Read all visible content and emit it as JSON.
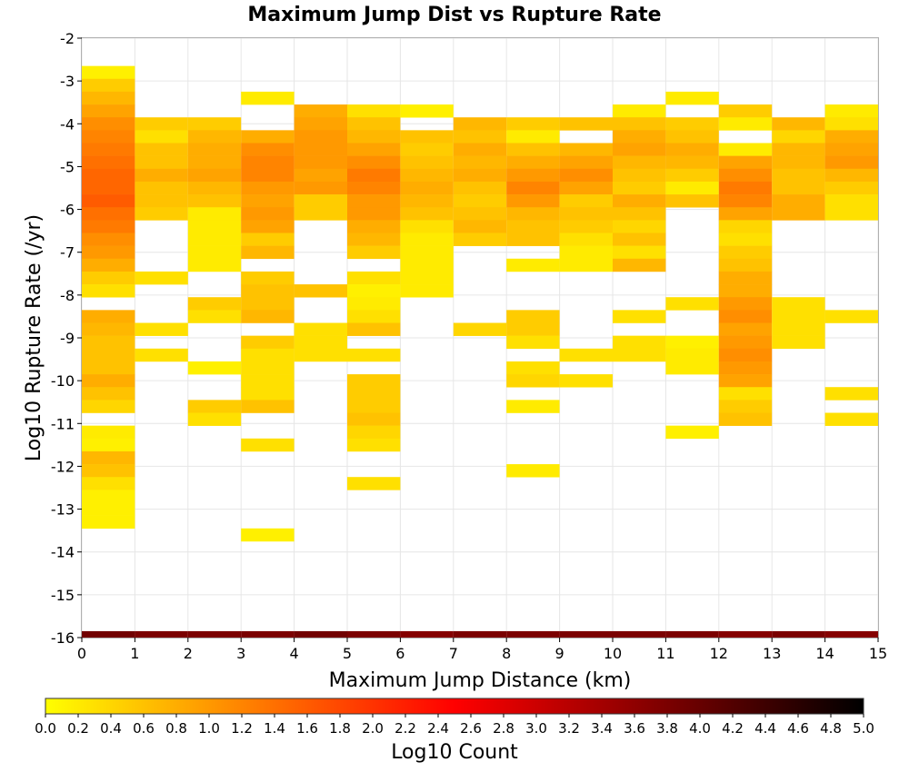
{
  "chart_data": {
    "type": "heatmap",
    "title": "Maximum Jump Dist vs Rupture Rate",
    "xlabel": "Maximum Jump Distance (km)",
    "ylabel": "Log10 Rupture Rate (/yr)",
    "xlim": [
      0,
      15
    ],
    "ylim": [
      -16,
      -2
    ],
    "x_ticks": [
      "0",
      "1",
      "2",
      "3",
      "4",
      "5",
      "6",
      "7",
      "8",
      "9",
      "10",
      "11",
      "12",
      "13",
      "14",
      "15"
    ],
    "y_ticks": [
      "-2",
      "-3",
      "-4",
      "-5",
      "-6",
      "-7",
      "-8",
      "-9",
      "-10",
      "-11",
      "-12",
      "-13",
      "-14",
      "-15",
      "-16"
    ],
    "x_bin_width": 1,
    "y_bin_height": 0.3,
    "grid": true,
    "colorbar": {
      "label": "Log10 Count",
      "range": [
        0,
        5
      ],
      "ticks": [
        "0.0",
        "0.2",
        "0.4",
        "0.6",
        "0.8",
        "1.0",
        "1.2",
        "1.4",
        "1.6",
        "1.8",
        "2.0",
        "2.2",
        "2.4",
        "2.6",
        "2.8",
        "3.0",
        "3.2",
        "3.4",
        "3.6",
        "3.8",
        "4.0",
        "4.2",
        "4.4",
        "4.6",
        "4.8",
        "5.0"
      ],
      "colors": [
        "#ffff00",
        "#ff7f00",
        "#ff0000",
        "#800000",
        "#000000"
      ]
    },
    "columns": [
      {
        "x": 0,
        "from": -2.65,
        "values": [
          0.15,
          0.5,
          0.7,
          0.9,
          1.1,
          1.2,
          1.3,
          1.4,
          1.5,
          1.5,
          1.6,
          1.4,
          1.3,
          1.1,
          1.0,
          0.8,
          0.5,
          0.3,
          null,
          0.8,
          0.7,
          0.6,
          0.6,
          0.6,
          0.8,
          0.6,
          0.4,
          null,
          0.2,
          0.15,
          0.7,
          0.6,
          0.3,
          0.15,
          0.15,
          0.15
        ],
        "base": 3.9
      },
      {
        "x": 1,
        "from": -3.85,
        "values": [
          0.5,
          0.3,
          0.6,
          0.6,
          0.8,
          0.6,
          0.6,
          0.5,
          null,
          null,
          null,
          null,
          0.3,
          null,
          null,
          null,
          0.3,
          null,
          0.3
        ],
        "base": 3.8
      },
      {
        "x": 2,
        "from": -3.85,
        "values": [
          0.5,
          0.7,
          0.8,
          0.8,
          0.9,
          0.7,
          0.6,
          0.2,
          0.2,
          0.2,
          0.2,
          0.2,
          null,
          null,
          0.5,
          0.3,
          null,
          null,
          null,
          0.15,
          null,
          null,
          0.5,
          0.3
        ],
        "base": 3.8
      },
      {
        "x": 3,
        "from": -3.25,
        "values": [
          0.2,
          null,
          null,
          0.8,
          1.1,
          1.2,
          1.2,
          1.0,
          0.9,
          1.0,
          0.9,
          0.5,
          0.7,
          null,
          0.5,
          0.6,
          0.6,
          0.7,
          null,
          0.5,
          0.3,
          0.3,
          0.3,
          0.3,
          0.6,
          null,
          null,
          0.3,
          null,
          null,
          null,
          null,
          null,
          null,
          0.15
        ],
        "base": 3.8
      },
      {
        "x": 4,
        "from": -3.55,
        "values": [
          0.8,
          0.9,
          1.0,
          1.0,
          1.0,
          0.9,
          1.0,
          0.5,
          0.5,
          null,
          null,
          null,
          null,
          null,
          0.6,
          null,
          null,
          0.3,
          0.3,
          0.3
        ],
        "base": 3.9
      },
      {
        "x": 5,
        "from": -3.55,
        "values": [
          0.3,
          0.6,
          0.7,
          0.9,
          1.1,
          1.3,
          1.2,
          1.0,
          1.0,
          0.8,
          0.7,
          0.5,
          null,
          0.3,
          0.15,
          0.2,
          0.3,
          0.6,
          null,
          0.3,
          null,
          0.5,
          0.5,
          0.5,
          0.6,
          0.4,
          0.3,
          null,
          null,
          0.3
        ],
        "base": 3.8
      },
      {
        "x": 6,
        "from": -3.55,
        "values": [
          0.15,
          null,
          0.6,
          0.5,
          0.6,
          0.7,
          0.8,
          0.7,
          0.6,
          0.3,
          0.2,
          0.2,
          0.2,
          0.2,
          0.2
        ],
        "base": 3.7
      },
      {
        "x": 7,
        "from": -3.85,
        "values": [
          0.7,
          0.6,
          0.8,
          0.7,
          0.8,
          0.6,
          0.5,
          0.6,
          0.7,
          0.5,
          null,
          null,
          null,
          null,
          null,
          null,
          0.4
        ],
        "base": 3.8
      },
      {
        "x": 8,
        "from": -3.85,
        "values": [
          0.5,
          0.2,
          0.6,
          0.8,
          1.0,
          1.2,
          1.0,
          0.7,
          0.6,
          0.6,
          null,
          0.2,
          null,
          null,
          null,
          0.5,
          0.5,
          0.3,
          null,
          0.3,
          0.4,
          null,
          0.2,
          null,
          null,
          null,
          null,
          0.2
        ],
        "base": 3.8
      },
      {
        "x": 9,
        "from": -3.85,
        "values": [
          0.6,
          null,
          0.7,
          0.9,
          1.1,
          0.9,
          0.5,
          0.6,
          0.5,
          0.3,
          0.2,
          0.2,
          null,
          null,
          null,
          null,
          null,
          null,
          0.3,
          null,
          0.3
        ],
        "base": 3.8
      },
      {
        "x": 10,
        "from": -3.55,
        "values": [
          0.2,
          0.6,
          0.8,
          0.9,
          0.7,
          0.6,
          0.5,
          0.8,
          0.6,
          0.4,
          0.6,
          0.3,
          0.7,
          null,
          null,
          null,
          0.3,
          null,
          0.3,
          0.3
        ],
        "base": 3.8
      },
      {
        "x": 11,
        "from": -3.25,
        "values": [
          0.2,
          null,
          0.5,
          0.6,
          0.8,
          0.7,
          0.5,
          0.2,
          0.6,
          null,
          null,
          null,
          null,
          null,
          null,
          null,
          0.3,
          null,
          null,
          0.15,
          0.2,
          0.2,
          null,
          null,
          null,
          null,
          0.15
        ],
        "base": 3.8
      },
      {
        "x": 12,
        "from": -3.55,
        "values": [
          0.5,
          0.2,
          null,
          0.2,
          0.9,
          1.1,
          1.3,
          1.2,
          0.9,
          0.4,
          0.3,
          0.5,
          0.6,
          0.8,
          0.8,
          1.0,
          1.1,
          0.9,
          1.0,
          1.1,
          1.0,
          0.9,
          0.3,
          0.5,
          0.6
        ],
        "base": 3.7
      },
      {
        "x": 13,
        "from": -3.85,
        "values": [
          0.7,
          0.4,
          0.7,
          0.7,
          0.6,
          0.6,
          0.8,
          0.8,
          null,
          null,
          null,
          null,
          null,
          null,
          0.3,
          0.3,
          0.3,
          0.3
        ],
        "base": 3.8
      },
      {
        "x": 14,
        "from": -3.55,
        "values": [
          0.2,
          0.3,
          0.8,
          0.9,
          1.0,
          0.7,
          0.5,
          0.3,
          0.3,
          null,
          null,
          null,
          null,
          null,
          null,
          null,
          0.3,
          null,
          null,
          null,
          null,
          null,
          0.3,
          null,
          0.3
        ],
        "base": 3.7
      }
    ]
  }
}
